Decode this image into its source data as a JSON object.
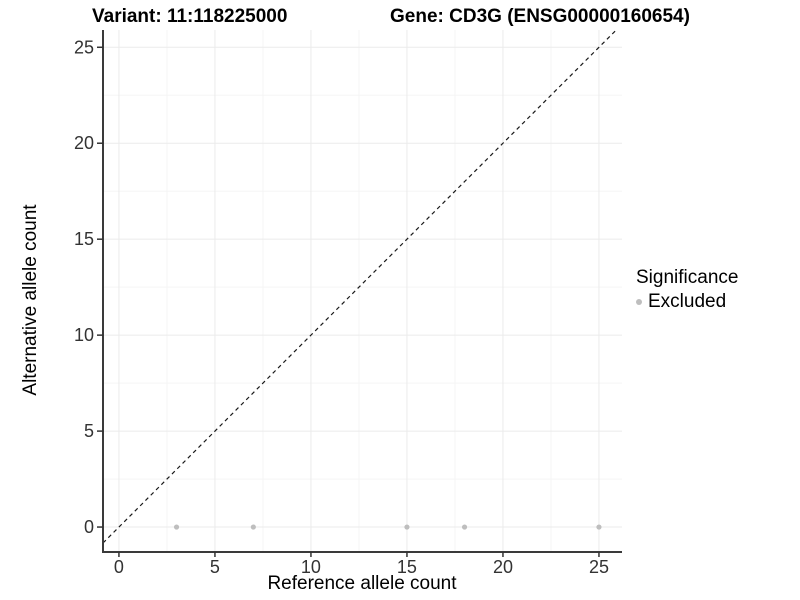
{
  "figure": {
    "variant_title": "Variant: 11:118225000",
    "gene_title": "Gene: CD3G (ENSG00000160654)"
  },
  "chart_data": {
    "type": "scatter",
    "title": "Variant: 11:118225000",
    "subtitle": "Gene: CD3G (ENSG00000160654)",
    "xlabel": "Reference allele count",
    "ylabel": "Alternative allele count",
    "xlim": [
      -0.83,
      26.2
    ],
    "ylim": [
      -1.3,
      25.9
    ],
    "x_ticks": [
      0,
      5,
      10,
      15,
      20,
      25
    ],
    "y_ticks": [
      0,
      5,
      10,
      15,
      20,
      25
    ],
    "minor_ticks_x": [
      2.5,
      7.5,
      12.5,
      17.5,
      22.5
    ],
    "minor_ticks_y": [
      2.5,
      7.5,
      12.5,
      17.5,
      22.5
    ],
    "grid": "major and minor, light gray on white panel",
    "reference_line": {
      "equation": "y = x",
      "style": "dashed",
      "color": "#1a1a1a"
    },
    "series": [
      {
        "name": "Excluded",
        "color": "#bebebe",
        "points": [
          [
            3,
            0
          ],
          [
            7,
            0
          ],
          [
            15,
            0
          ],
          [
            18,
            0
          ],
          [
            25,
            0
          ]
        ]
      }
    ],
    "legend": {
      "title": "Significance",
      "position": "right",
      "entries": [
        {
          "label": "Excluded",
          "color": "#bebebe"
        }
      ]
    }
  },
  "colors": {
    "grid_major": "#ebebeb",
    "grid_minor": "#f5f5f5",
    "axis_line": "#3a3a3a",
    "tick_mark": "#333333",
    "point": "#bebebe"
  }
}
